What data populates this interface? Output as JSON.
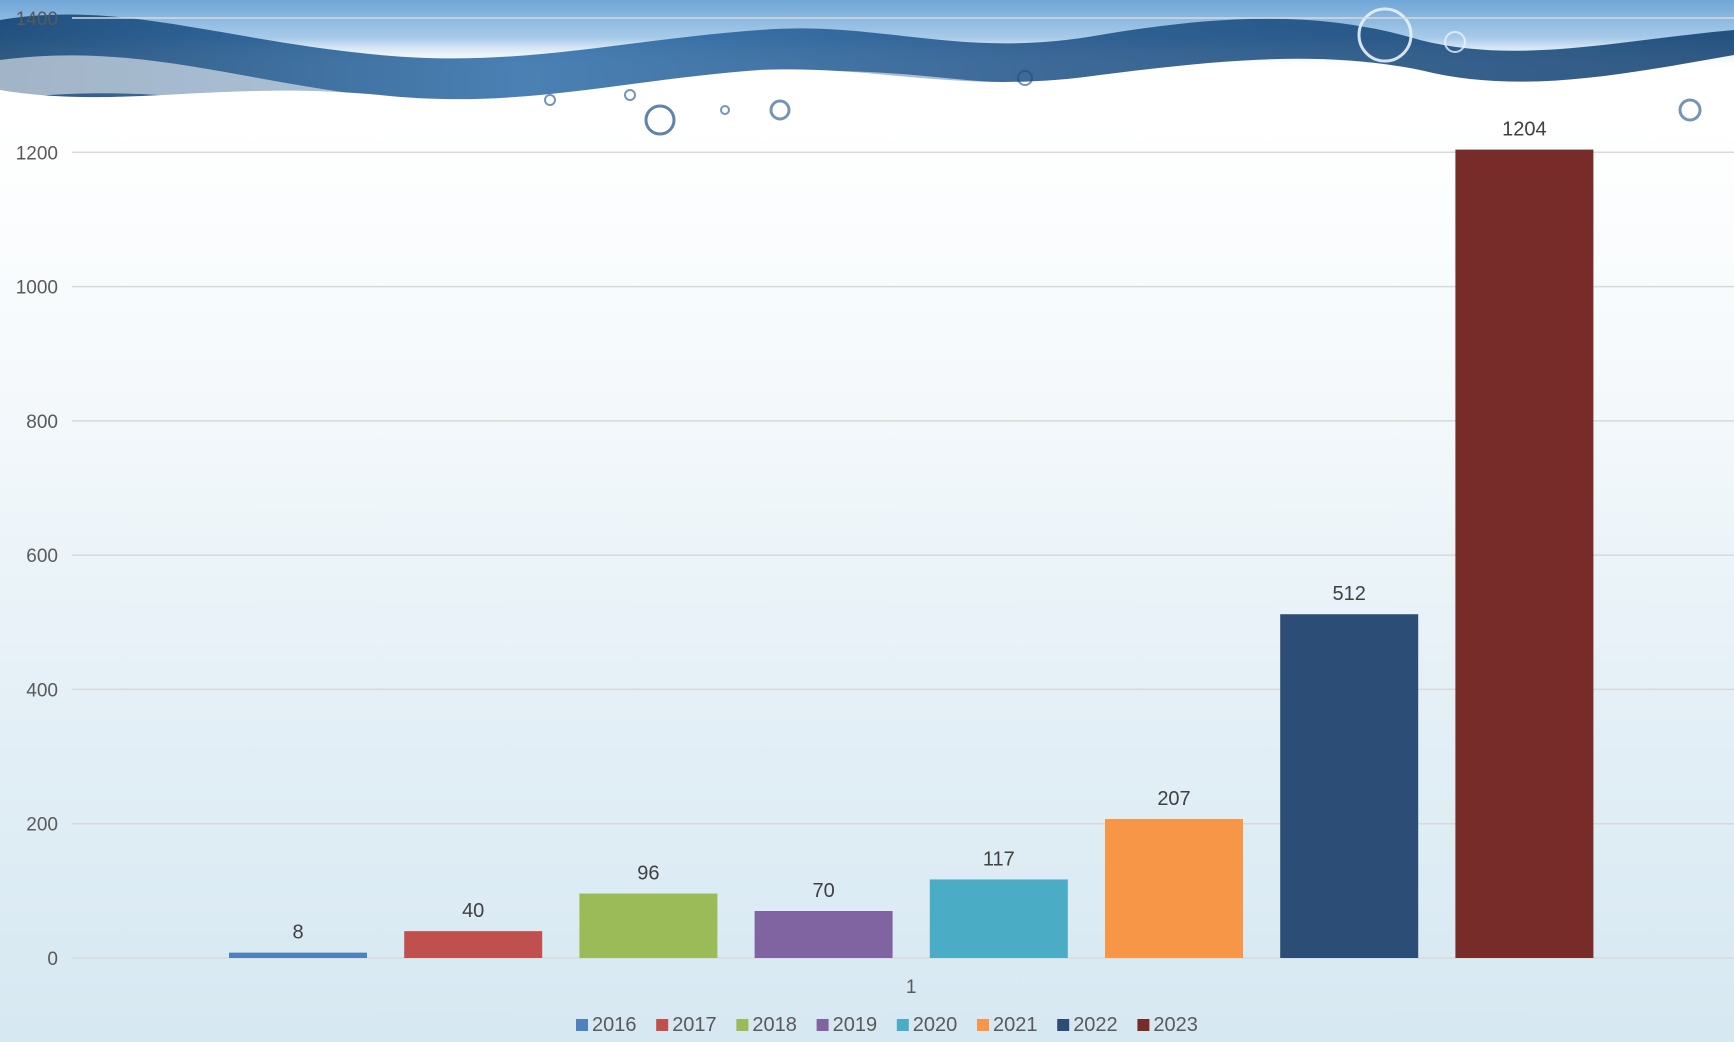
{
  "chart_data": {
    "type": "bar",
    "categories": [
      "1"
    ],
    "series": [
      {
        "name": "2016",
        "values": [
          8
        ],
        "color": "#4f81bd"
      },
      {
        "name": "2017",
        "values": [
          40
        ],
        "color": "#c0504d"
      },
      {
        "name": "2018",
        "values": [
          96
        ],
        "color": "#9bbb59"
      },
      {
        "name": "2019",
        "values": [
          70
        ],
        "color": "#8064a2"
      },
      {
        "name": "2020",
        "values": [
          117
        ],
        "color": "#4bacc6"
      },
      {
        "name": "2021",
        "values": [
          207
        ],
        "color": "#f79646"
      },
      {
        "name": "2022",
        "values": [
          512
        ],
        "color": "#2c4d75"
      },
      {
        "name": "2023",
        "values": [
          1204
        ],
        "color": "#772c2a"
      }
    ],
    "ylim": [
      0,
      1400
    ],
    "yticks": [
      "0",
      "200",
      "400",
      "600",
      "800",
      "1000",
      "1200",
      "1400"
    ],
    "grid": true,
    "data_labels": true,
    "legend_position": "bottom",
    "background": "water splash image at top",
    "title": "",
    "xlabel": "",
    "ylabel": ""
  }
}
